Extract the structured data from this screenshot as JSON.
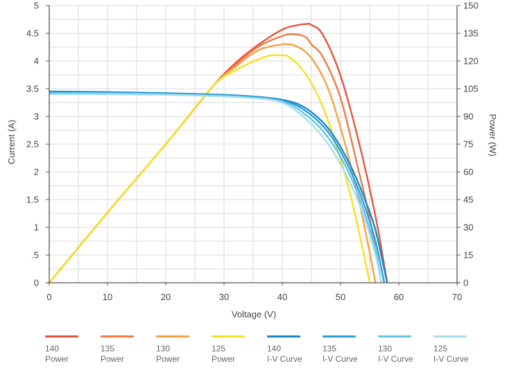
{
  "chart_data": {
    "type": "line",
    "xlabel": "Voltage (V)",
    "ylabel_left": "Current (A)",
    "ylabel_right": "Power (W)",
    "xlim": [
      0,
      70
    ],
    "ylim_left": [
      0,
      5
    ],
    "ylim_right": [
      0,
      150
    ],
    "x_ticks": [
      "0",
      "10",
      "20",
      "30",
      "40",
      "50",
      "60",
      "70"
    ],
    "y_left_ticks": [
      {
        "v": 0,
        "label": "0"
      },
      {
        "v": 0.5,
        "label": ".5"
      },
      {
        "v": 1,
        "label": "1"
      },
      {
        "v": 1.5,
        "label": "1.5"
      },
      {
        "v": 2,
        "label": "2"
      },
      {
        "v": 2.5,
        "label": "2.5"
      },
      {
        "v": 3,
        "label": "3"
      },
      {
        "v": 3.5,
        "label": "3.5"
      },
      {
        "v": 4,
        "label": "4"
      },
      {
        "v": 4.5,
        "label": "4.5"
      },
      {
        "v": 5,
        "label": "5"
      }
    ],
    "y_right_ticks": [
      "0",
      "15",
      "30",
      "45",
      "60",
      "75",
      "90",
      "105",
      "120",
      "135",
      "150"
    ],
    "grid": true,
    "legend_position": "bottom",
    "series": [
      {
        "name_line1": "140",
        "name_line2": "Power",
        "axis": "right",
        "color": "#e5533b",
        "x": [
          0,
          10,
          20,
          28,
          32,
          36,
          40,
          42,
          44,
          45,
          47,
          50,
          53,
          56,
          58
        ],
        "y": [
          0,
          38,
          75,
          106,
          119,
          129,
          137,
          139,
          140,
          139.5,
          134,
          112,
          78,
          36,
          0
        ]
      },
      {
        "name_line1": "135",
        "name_line2": "Power",
        "axis": "right",
        "color": "#ee7a45",
        "x": [
          0,
          10,
          20,
          28,
          32,
          36,
          40,
          42,
          44,
          45,
          47,
          50,
          53,
          55,
          57
        ],
        "y": [
          0,
          38,
          75,
          106,
          118,
          128,
          133.5,
          134.5,
          133,
          129,
          122,
          100,
          62,
          35,
          0
        ]
      },
      {
        "name_line1": "130",
        "name_line2": "Power",
        "axis": "right",
        "color": "#f3a23f",
        "x": [
          0,
          10,
          20,
          28,
          32,
          36,
          40,
          41,
          42,
          44,
          46,
          48,
          50,
          52,
          54,
          56
        ],
        "y": [
          0,
          38,
          75,
          106,
          117,
          126,
          129,
          129,
          128.5,
          125,
          117,
          104,
          84,
          60,
          32,
          0
        ]
      },
      {
        "name_line1": "125",
        "name_line2": "Power",
        "axis": "right",
        "color": "#f5e11f",
        "x": [
          0,
          10,
          20,
          28,
          32,
          36,
          38,
          40,
          41,
          43,
          45,
          47,
          49,
          51,
          53,
          55
        ],
        "y": [
          0,
          38,
          75,
          106,
          115,
          121,
          123,
          123,
          122.5,
          117,
          108,
          95,
          77,
          56,
          30,
          0
        ]
      },
      {
        "name_line1": "140",
        "name_line2": "I-V Curve",
        "axis": "left",
        "color": "#1a86c7",
        "x": [
          0,
          10,
          20,
          30,
          35,
          38,
          40,
          42,
          44,
          46,
          48,
          50,
          52,
          54,
          56,
          58
        ],
        "y": [
          3.45,
          3.44,
          3.42,
          3.39,
          3.36,
          3.33,
          3.3,
          3.25,
          3.15,
          2.99,
          2.77,
          2.45,
          2.05,
          1.55,
          0.95,
          0
        ]
      },
      {
        "name_line1": "135",
        "name_line2": "I-V Curve",
        "axis": "left",
        "color": "#2a9fd8",
        "x": [
          0,
          10,
          20,
          30,
          35,
          38,
          40,
          42,
          44,
          46,
          48,
          50,
          52,
          54,
          56,
          57.5
        ],
        "y": [
          3.44,
          3.43,
          3.41,
          3.38,
          3.35,
          3.32,
          3.28,
          3.22,
          3.1,
          2.93,
          2.7,
          2.37,
          1.95,
          1.42,
          0.75,
          0
        ]
      },
      {
        "name_line1": "130",
        "name_line2": "I-V Curve",
        "axis": "left",
        "color": "#62c5e8",
        "x": [
          0,
          10,
          20,
          30,
          35,
          38,
          40,
          42,
          44,
          46,
          48,
          50,
          52,
          54,
          56,
          57
        ],
        "y": [
          3.42,
          3.42,
          3.4,
          3.37,
          3.34,
          3.31,
          3.27,
          3.18,
          3.03,
          2.85,
          2.6,
          2.27,
          1.85,
          1.3,
          0.6,
          0
        ]
      },
      {
        "name_line1": "125",
        "name_line2": "I-V Curve",
        "axis": "left",
        "color": "#a8ddef",
        "x": [
          0,
          10,
          20,
          30,
          35,
          38,
          40,
          42,
          44,
          46,
          48,
          50,
          52,
          54,
          56,
          57
        ],
        "y": [
          3.4,
          3.4,
          3.39,
          3.36,
          3.33,
          3.3,
          3.25,
          3.13,
          2.96,
          2.75,
          2.48,
          2.14,
          1.72,
          1.2,
          0.5,
          0
        ]
      }
    ]
  }
}
